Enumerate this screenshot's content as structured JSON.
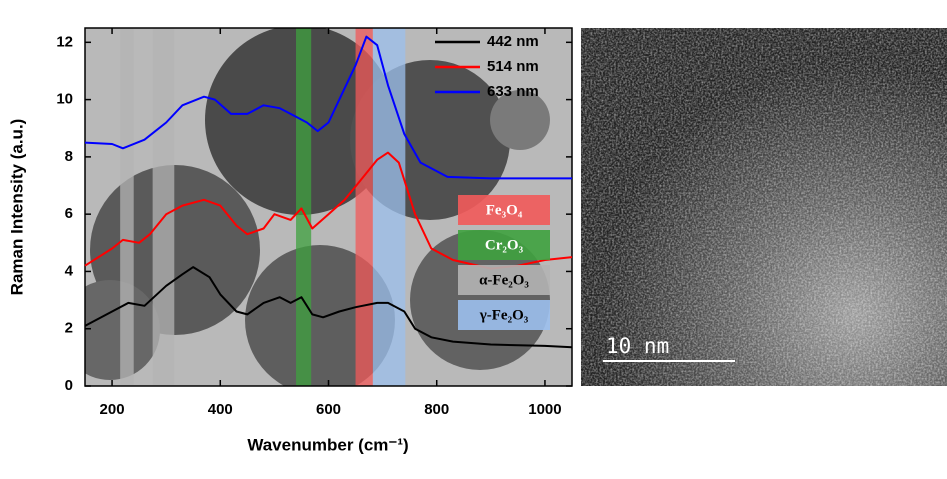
{
  "chart_data": {
    "type": "line",
    "xlabel": "Wavenumber (cm⁻¹)",
    "ylabel": "Raman Intensity (a.u.)",
    "xlim": [
      150,
      1050
    ],
    "xticks": [
      200,
      400,
      600,
      800,
      1000
    ],
    "ylim": [
      0,
      12.5
    ],
    "yticks": [
      0,
      2,
      4,
      6,
      8,
      10,
      12
    ],
    "legend": "upper right",
    "series": [
      {
        "name": "442 nm",
        "color": "#000000",
        "x": [
          150,
          200,
          230,
          260,
          300,
          330,
          350,
          380,
          400,
          430,
          450,
          480,
          510,
          530,
          550,
          570,
          590,
          620,
          650,
          690,
          710,
          740,
          760,
          790,
          830,
          900,
          1000,
          1050
        ],
        "values": [
          2.1,
          2.6,
          2.9,
          2.8,
          3.5,
          3.9,
          4.15,
          3.8,
          3.2,
          2.6,
          2.5,
          2.9,
          3.1,
          2.9,
          3.1,
          2.5,
          2.4,
          2.6,
          2.75,
          2.9,
          2.9,
          2.6,
          2.0,
          1.7,
          1.55,
          1.45,
          1.4,
          1.35
        ]
      },
      {
        "name": "514 nm",
        "color": "#ff0000",
        "x": [
          150,
          200,
          220,
          250,
          270,
          300,
          330,
          370,
          400,
          430,
          450,
          480,
          500,
          530,
          550,
          570,
          600,
          630,
          660,
          690,
          710,
          730,
          760,
          790,
          830,
          900,
          950,
          1000,
          1050
        ],
        "values": [
          4.2,
          4.8,
          5.1,
          5.0,
          5.3,
          6.0,
          6.3,
          6.5,
          6.3,
          5.6,
          5.3,
          5.5,
          6.0,
          5.8,
          6.2,
          5.5,
          6.0,
          6.5,
          7.2,
          7.9,
          8.15,
          7.8,
          6.0,
          4.8,
          4.4,
          4.1,
          4.2,
          4.4,
          4.5
        ]
      },
      {
        "name": "633 nm",
        "color": "#0000ff",
        "x": [
          150,
          200,
          220,
          260,
          300,
          330,
          370,
          390,
          420,
          450,
          480,
          510,
          530,
          560,
          580,
          600,
          620,
          650,
          670,
          690,
          710,
          740,
          770,
          820,
          900,
          1050
        ],
        "values": [
          8.5,
          8.45,
          8.3,
          8.6,
          9.2,
          9.8,
          10.1,
          10.0,
          9.5,
          9.5,
          9.8,
          9.7,
          9.5,
          9.2,
          8.9,
          9.2,
          10.0,
          11.2,
          12.2,
          11.9,
          10.5,
          8.8,
          7.8,
          7.3,
          7.25,
          7.25
        ]
      }
    ],
    "bands": [
      {
        "label": "Fe₃O₄",
        "color": "#f25a5a",
        "text_color": "#ffffff",
        "ranges": [
          [
            650,
            682
          ]
        ]
      },
      {
        "label": "Cr₂O₃",
        "color": "#3fa23f",
        "text_color": "#ffffff",
        "ranges": [
          [
            540,
            568
          ]
        ]
      },
      {
        "label": "α-Fe₂O₃",
        "color": "#b4b4b4",
        "text_color": "#000000",
        "ranges": [
          [
            215,
            240
          ],
          [
            275,
            315
          ]
        ]
      },
      {
        "label": "γ-Fe₂O₃",
        "color": "#9cc0ee",
        "text_color": "#000000",
        "ranges": [
          [
            682,
            742
          ]
        ]
      }
    ]
  },
  "scale_bar": "10 nm"
}
